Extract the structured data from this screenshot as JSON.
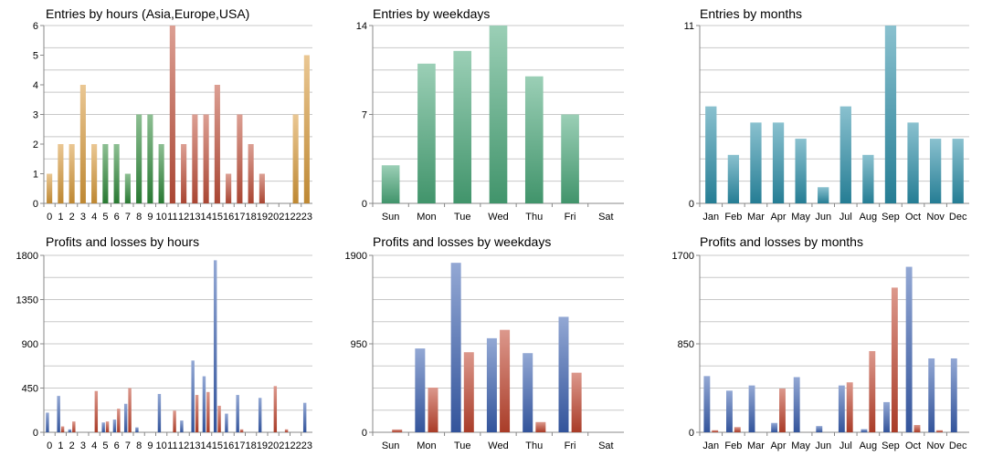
{
  "colors": {
    "hour_orange": "#d89a3a",
    "hour_green": "#2f8a3a",
    "hour_red": "#c0503a",
    "weekday_green": "#4aa87a",
    "month_teal": "#2a8ea8",
    "profit_blue": "#3a60b0",
    "loss_red": "#c0442e",
    "grid": "#c8c8c8",
    "axis": "#888888"
  },
  "chart_data": [
    {
      "type": "bar",
      "title": "Entries by hours (Asia,Europe,USA)",
      "categories": [
        "0",
        "1",
        "2",
        "3",
        "4",
        "5",
        "6",
        "7",
        "8",
        "9",
        "10",
        "11",
        "12",
        "13",
        "14",
        "15",
        "16",
        "17",
        "18",
        "19",
        "20",
        "21",
        "22",
        "23"
      ],
      "values": [
        1,
        2,
        2,
        4,
        2,
        2,
        2,
        1,
        3,
        3,
        2,
        6,
        2,
        3,
        3,
        4,
        1,
        3,
        2,
        1,
        0,
        0,
        3,
        5
      ],
      "bar_colors": [
        "hour_orange",
        "hour_orange",
        "hour_orange",
        "hour_orange",
        "hour_orange",
        "hour_green",
        "hour_green",
        "hour_green",
        "hour_green",
        "hour_green",
        "hour_green",
        "hour_red",
        "hour_red",
        "hour_red",
        "hour_red",
        "hour_red",
        "hour_red",
        "hour_red",
        "hour_red",
        "hour_red",
        "hour_red",
        "hour_orange",
        "hour_orange",
        "hour_orange"
      ],
      "yticks": [
        0,
        1,
        2,
        3,
        4,
        5,
        6
      ],
      "ylim": [
        0,
        6
      ],
      "grid": true
    },
    {
      "type": "bar",
      "title": "Entries by weekdays",
      "categories": [
        "Sun",
        "Mon",
        "Tue",
        "Wed",
        "Thu",
        "Fri",
        "Sat"
      ],
      "values": [
        3,
        11,
        12,
        14,
        10,
        7,
        0
      ],
      "bar_colors": [
        "weekday_green"
      ],
      "yticks": [
        0,
        7,
        14
      ],
      "ylim": [
        0,
        14
      ],
      "grid": true
    },
    {
      "type": "bar",
      "title": "Entries by months",
      "categories": [
        "Jan",
        "Feb",
        "Mar",
        "Apr",
        "May",
        "Jun",
        "Jul",
        "Aug",
        "Sep",
        "Oct",
        "Nov",
        "Dec"
      ],
      "values": [
        6,
        3,
        5,
        5,
        4,
        1,
        6,
        3,
        11,
        5,
        4,
        4
      ],
      "bar_colors": [
        "month_teal"
      ],
      "yticks": [
        0,
        11
      ],
      "ylim": [
        0,
        11
      ],
      "grid": true
    },
    {
      "type": "bar",
      "title": "Profits and losses by hours",
      "categories": [
        "0",
        "1",
        "2",
        "3",
        "4",
        "5",
        "6",
        "7",
        "8",
        "9",
        "10",
        "11",
        "12",
        "13",
        "14",
        "15",
        "16",
        "17",
        "18",
        "19",
        "20",
        "21",
        "22",
        "23"
      ],
      "series": [
        {
          "values": [
            200,
            370,
            30,
            0,
            0,
            100,
            130,
            290,
            50,
            0,
            390,
            0,
            120,
            730,
            570,
            1750,
            190,
            380,
            0,
            350,
            0,
            0,
            0,
            300
          ]
        },
        {
          "values": [
            0,
            60,
            110,
            0,
            420,
            110,
            240,
            450,
            0,
            0,
            0,
            220,
            0,
            380,
            410,
            270,
            0,
            30,
            0,
            0,
            470,
            30,
            0,
            0
          ]
        }
      ],
      "series_colors": [
        "profit_blue",
        "loss_red"
      ],
      "yticks": [
        0,
        450,
        900,
        1350,
        1800
      ],
      "ylim": [
        0,
        1800
      ],
      "grid": true
    },
    {
      "type": "bar",
      "title": "Profits and losses by weekdays",
      "categories": [
        "Sun",
        "Mon",
        "Tue",
        "Wed",
        "Thu",
        "Fri",
        "Sat"
      ],
      "series": [
        {
          "values": [
            0,
            900,
            1820,
            1010,
            850,
            1240,
            0
          ]
        },
        {
          "values": [
            30,
            480,
            860,
            1100,
            110,
            640,
            0
          ]
        }
      ],
      "series_colors": [
        "profit_blue",
        "loss_red"
      ],
      "yticks": [
        0,
        950,
        1900
      ],
      "ylim": [
        0,
        1900
      ],
      "grid": true
    },
    {
      "type": "bar",
      "title": "Profits and losses by months",
      "categories": [
        "Jan",
        "Feb",
        "Mar",
        "Apr",
        "May",
        "Jun",
        "Jul",
        "Aug",
        "Sep",
        "Oct",
        "Nov",
        "Dec"
      ],
      "series": [
        {
          "values": [
            540,
            400,
            450,
            90,
            530,
            60,
            450,
            30,
            290,
            1590,
            710,
            710
          ]
        },
        {
          "values": [
            20,
            50,
            0,
            420,
            0,
            0,
            480,
            780,
            1390,
            70,
            20,
            0
          ]
        }
      ],
      "series_colors": [
        "profit_blue",
        "loss_red"
      ],
      "yticks": [
        0,
        850,
        1700
      ],
      "ylim": [
        0,
        1700
      ],
      "grid": true
    }
  ]
}
